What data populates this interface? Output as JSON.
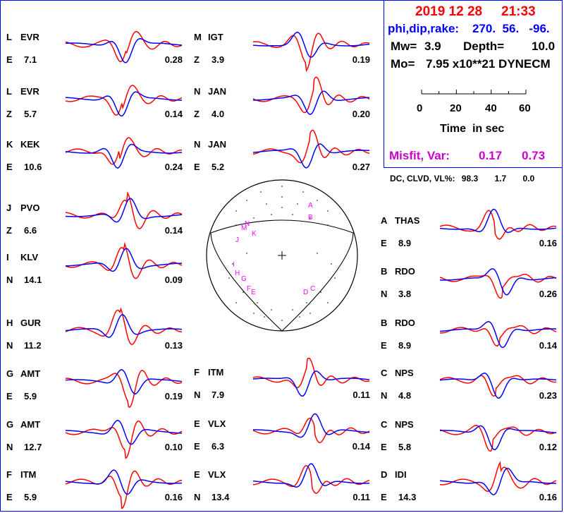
{
  "header": {
    "date": "2019 12 28",
    "time": "21:33",
    "mech_label": "phi,dip,rake:",
    "mech_vals": "270.  56.   -96.",
    "mw_label": "Mw=",
    "mw": "3.9",
    "depth_label": "Depth=",
    "depth": "10.0",
    "mo_label": "Mo=",
    "mo": "7.95 x10**21 DYNECM",
    "time_axis": {
      "ticks": [
        "0",
        "20",
        "40",
        "60"
      ],
      "label": "Time  in sec"
    },
    "misfit_label": "Misfit, Var:",
    "misfit": "0.17",
    "var": "0.73"
  },
  "dc": {
    "label": "DC, CLVD, VL%:",
    "dc": "98.3",
    "clvd": "1.7",
    "vl": "0.0"
  },
  "colors": {
    "observed": "#ff0000",
    "synthetic": "#0000ff",
    "label": "#ff00ff",
    "date": "#ff0000",
    "mech": "#0000ff",
    "misfit": "#cc00cc"
  },
  "traces": [
    {
      "letter": "L",
      "station": "EVR",
      "comp": "E",
      "dist": "7.1",
      "val": "0.28"
    },
    {
      "letter": "L",
      "station": "EVR",
      "comp": "Z",
      "dist": "5.7",
      "val": "0.14"
    },
    {
      "letter": "K",
      "station": "KEK",
      "comp": "E",
      "dist": "10.6",
      "val": "0.24"
    },
    {
      "letter": "J",
      "station": "PVO",
      "comp": "Z",
      "dist": "6.6",
      "val": "0.14"
    },
    {
      "letter": "I",
      "station": "KLV",
      "comp": "N",
      "dist": "14.1",
      "val": "0.09"
    },
    {
      "letter": "H",
      "station": "GUR",
      "comp": "N",
      "dist": "11.2",
      "val": "0.13"
    },
    {
      "letter": "G",
      "station": "AMT",
      "comp": "E",
      "dist": "5.9",
      "val": "0.19"
    },
    {
      "letter": "G",
      "station": "AMT",
      "comp": "N",
      "dist": "12.7",
      "val": "0.10"
    },
    {
      "letter": "F",
      "station": "ITM",
      "comp": "E",
      "dist": "5.9",
      "val": "0.16"
    },
    {
      "letter": "M",
      "station": "IGT",
      "comp": "Z",
      "dist": "3.9",
      "val": "0.19"
    },
    {
      "letter": "N",
      "station": "JAN",
      "comp": "Z",
      "dist": "4.0",
      "val": "0.20"
    },
    {
      "letter": "N",
      "station": "JAN",
      "comp": "E",
      "dist": "5.2",
      "val": "0.27"
    },
    {
      "letter": "F",
      "station": "ITM",
      "comp": "N",
      "dist": "7.9",
      "val": "0.11"
    },
    {
      "letter": "E",
      "station": "VLX",
      "comp": "E",
      "dist": "6.3",
      "val": "0.14"
    },
    {
      "letter": "E",
      "station": "VLX",
      "comp": "N",
      "dist": "13.4",
      "val": "0.11"
    },
    {
      "letter": "A",
      "station": "THAS",
      "comp": "E",
      "dist": "8.9",
      "val": "0.16"
    },
    {
      "letter": "B",
      "station": "RDO",
      "comp": "N",
      "dist": "3.8",
      "val": "0.26"
    },
    {
      "letter": "B",
      "station": "RDO",
      "comp": "E",
      "dist": "8.9",
      "val": "0.14"
    },
    {
      "letter": "C",
      "station": "NPS",
      "comp": "N",
      "dist": "4.8",
      "val": "0.23"
    },
    {
      "letter": "C",
      "station": "NPS",
      "comp": "E",
      "dist": "5.8",
      "val": "0.12"
    },
    {
      "letter": "D",
      "station": "IDI",
      "comp": "E",
      "dist": "14.3",
      "val": "0.16"
    }
  ],
  "beachball": {
    "labels": [
      "A",
      "B",
      "N",
      "M",
      "K",
      "J",
      "I",
      "H",
      "G",
      "F",
      "E",
      "D",
      "C"
    ]
  }
}
